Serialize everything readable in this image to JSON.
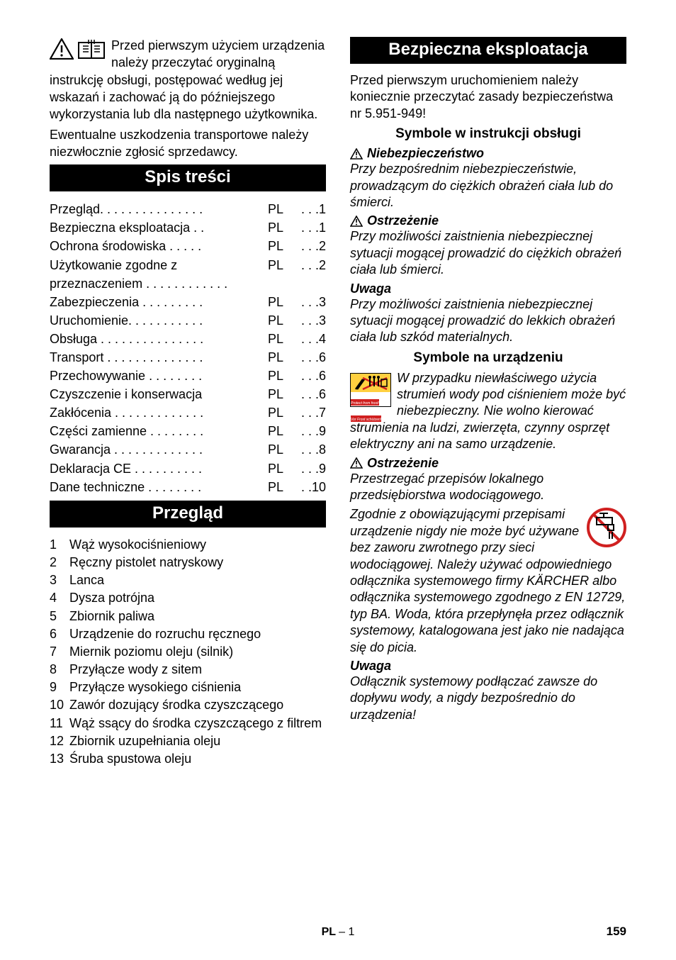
{
  "intro": {
    "p1": "Przed pierwszym użyciem urządzenia należy przeczytać oryginalną instrukcję obsługi, postępować według jej wskazań i zachować ją do późniejszego wykorzystania lub dla następnego użytkownika.",
    "p2": "Ewentualne uszkodzenia transportowe należy niezwłocznie zgłosić sprzedawcy."
  },
  "toc": {
    "heading": "Spis treści",
    "lang": "PL",
    "rows": [
      {
        "label": "Przegląd. . . . . . . . . . . . . . .",
        "page": " . . .1"
      },
      {
        "label": "Bezpieczna eksploatacja . .",
        "page": " . . .1"
      },
      {
        "label": "Ochrona środowiska  . . . . .",
        "page": " . . .2"
      },
      {
        "label": "Użytkowanie zgodne z przeznaczeniem . . . . . . . . . . . .",
        "page": " . . .2",
        "wrap": true
      },
      {
        "label": "Zabezpieczenia . . . . . . . . .",
        "page": " . . .3"
      },
      {
        "label": "Uruchomienie. . . . . . . . . . .",
        "page": " . . .3"
      },
      {
        "label": "Obsługa . . . . . . . . . . . . . . .",
        "page": " . . .4"
      },
      {
        "label": "Transport . . . . . . . . . . . . . .",
        "page": " . . .6"
      },
      {
        "label": "Przechowywanie  . . . . . . . .",
        "page": " . . .6"
      },
      {
        "label": "Czyszczenie i konserwacja",
        "page": " . . .6"
      },
      {
        "label": "Zakłócenia . . . . . . . . . . . . .",
        "page": " . . .7"
      },
      {
        "label": "Części zamienne . . . . . . . .",
        "page": " . . .9"
      },
      {
        "label": "Gwarancja . . . . . . . . . . . . .",
        "page": " . . .8"
      },
      {
        "label": "Deklaracja CE . . . . . . . . . .",
        "page": " . . .9"
      },
      {
        "label": "Dane techniczne  . . . . . . . .",
        "page": " . .10"
      }
    ]
  },
  "overview": {
    "heading": "Przegląd",
    "items": [
      "Wąż wysokociśnieniowy",
      "Ręczny pistolet natryskowy",
      "Lanca",
      "Dysza potrójna",
      "Zbiornik paliwa",
      "Urządzenie do rozruchu ręcznego",
      "Miernik poziomu oleju (silnik)",
      "Przyłącze wody z sitem",
      "Przyłącze wysokiego ciśnienia",
      "Zawór dozujący środka czyszczącego",
      "Wąż ssący do środka czyszczącego z filtrem",
      "Zbiornik uzupełniania oleju",
      "Śruba spustowa oleju"
    ]
  },
  "safety": {
    "heading": "Bezpieczna eksploatacja",
    "intro": "Przed pierwszym uruchomieniem należy koniecznie przeczytać zasady bezpieczeństwa nr 5.951-949!",
    "sub1": "Symbole w instrukcji obsługi",
    "danger_label": "Niebezpieczeństwo",
    "danger_text": "Przy bezpośrednim niebezpieczeństwie, prowadzącym do ciężkich obrażeń ciała lub do śmierci.",
    "warn_label": "Ostrzeżenie",
    "warn_text": "Przy możliwości zaistnienia niebezpiecznej sytuacji mogącej prowadzić do ciężkich obrażeń ciała lub śmierci.",
    "note_label": "Uwaga",
    "note_text": "Przy możliwości zaistnienia niebezpiecznej sytuacji mogącej prowadzić do lekkich obrażeń ciała lub szkód materialnych.",
    "sub2": "Symbole na urządzeniu",
    "device_text": "W przypadku niewłaściwego użycia strumień wody pod ciśnieniem może być niebezpieczny. Nie wolno kierować strumienia na ludzi, zwierzęta, czynny osprzęt elektryczny ani na samo urządzenie.",
    "warn2_label": "Ostrzeżenie",
    "warn2_p1": "Przestrzegać przepisów lokalnego przedsiębiorstwa wodociągowego.",
    "warn2_p2": "Zgodnie z obowiązującymi przepisami urządzenie nigdy nie może być używane bez zaworu zwrotnego przy sieci wodociągowej. Należy używać odpowiedniego odłącznika systemowego firmy KÄRCHER albo odłącznika systemowego zgodnego z EN 12729, typ BA. Woda, która przepłynęła przez odłącznik systemowy, katalogowana jest jako nie nadająca się do picia.",
    "note2_label": "Uwaga",
    "note2_text": "Odłącznik systemowy podłączać zawsze do dopływu wody, a nigdy bezpośrednio do urządzenia!"
  },
  "footer": {
    "center_lang": "PL",
    "center_page": "– 1",
    "page_num": "159"
  }
}
